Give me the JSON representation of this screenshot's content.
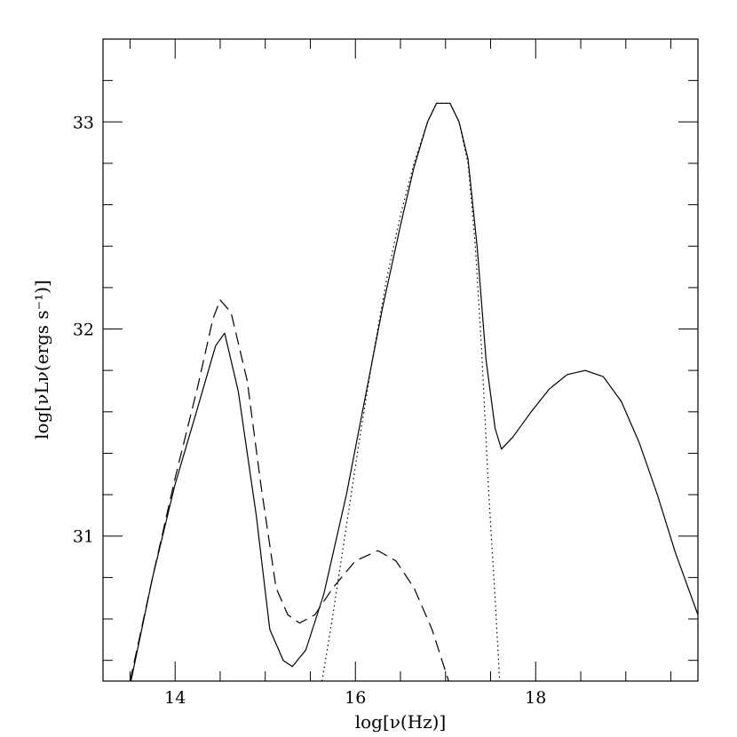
{
  "chart_data": {
    "type": "line",
    "title": "",
    "xlabel": "log[ν(Hz)]",
    "ylabel": "log[νLν(ergs s⁻¹)]",
    "xlim": [
      13.2,
      19.8
    ],
    "ylim": [
      30.3,
      33.4
    ],
    "xticks": [
      14,
      16,
      18
    ],
    "xtick_labels": [
      "14",
      "16",
      "18"
    ],
    "yticks": [
      31,
      32,
      33
    ],
    "ytick_labels": [
      "31",
      "32",
      "33"
    ],
    "x_minor_step": 0.5,
    "y_minor_step": 0.2,
    "grid": false,
    "legend": "none",
    "series": [
      {
        "style": "solid",
        "points": [
          [
            13.5,
            30.28
          ],
          [
            13.75,
            30.8
          ],
          [
            14.0,
            31.25
          ],
          [
            14.25,
            31.62
          ],
          [
            14.45,
            31.92
          ],
          [
            14.55,
            31.98
          ],
          [
            14.7,
            31.7
          ],
          [
            14.9,
            31.1
          ],
          [
            15.05,
            30.55
          ],
          [
            15.2,
            30.4
          ],
          [
            15.3,
            30.37
          ],
          [
            15.45,
            30.45
          ],
          [
            15.65,
            30.72
          ],
          [
            15.9,
            31.2
          ],
          [
            16.1,
            31.65
          ],
          [
            16.3,
            32.1
          ],
          [
            16.5,
            32.5
          ],
          [
            16.65,
            32.78
          ],
          [
            16.8,
            33.0
          ],
          [
            16.9,
            33.09
          ],
          [
            17.05,
            33.09
          ],
          [
            17.15,
            33.0
          ],
          [
            17.25,
            32.82
          ],
          [
            17.35,
            32.4
          ],
          [
            17.45,
            31.85
          ],
          [
            17.55,
            31.52
          ],
          [
            17.62,
            31.42
          ],
          [
            17.75,
            31.48
          ],
          [
            17.95,
            31.6
          ],
          [
            18.15,
            31.71
          ],
          [
            18.35,
            31.78
          ],
          [
            18.55,
            31.8
          ],
          [
            18.75,
            31.77
          ],
          [
            18.95,
            31.65
          ],
          [
            19.15,
            31.45
          ],
          [
            19.35,
            31.2
          ],
          [
            19.55,
            30.92
          ],
          [
            19.8,
            30.62
          ]
        ]
      },
      {
        "style": "dashed",
        "points": [
          [
            13.5,
            30.3
          ],
          [
            13.75,
            30.8
          ],
          [
            14.0,
            31.28
          ],
          [
            14.25,
            31.72
          ],
          [
            14.42,
            32.05
          ],
          [
            14.5,
            32.14
          ],
          [
            14.62,
            32.08
          ],
          [
            14.8,
            31.75
          ],
          [
            14.95,
            31.25
          ],
          [
            15.12,
            30.75
          ],
          [
            15.25,
            30.62
          ],
          [
            15.38,
            30.58
          ],
          [
            15.55,
            30.62
          ],
          [
            15.75,
            30.75
          ],
          [
            16.0,
            30.88
          ],
          [
            16.25,
            30.93
          ],
          [
            16.45,
            30.88
          ],
          [
            16.65,
            30.75
          ],
          [
            16.85,
            30.55
          ],
          [
            17.05,
            30.28
          ]
        ]
      },
      {
        "style": "dotted",
        "points": [
          [
            15.63,
            30.3
          ],
          [
            15.75,
            30.62
          ],
          [
            15.9,
            31.05
          ],
          [
            16.05,
            31.48
          ],
          [
            16.2,
            31.88
          ],
          [
            16.35,
            32.25
          ],
          [
            16.5,
            32.55
          ],
          [
            16.65,
            32.8
          ],
          [
            16.8,
            33.0
          ],
          [
            16.9,
            33.09
          ],
          [
            17.05,
            33.09
          ],
          [
            17.15,
            33.0
          ],
          [
            17.25,
            32.8
          ],
          [
            17.33,
            32.4
          ],
          [
            17.4,
            31.9
          ],
          [
            17.48,
            31.2
          ],
          [
            17.55,
            30.7
          ],
          [
            17.6,
            30.3
          ]
        ]
      }
    ]
  }
}
